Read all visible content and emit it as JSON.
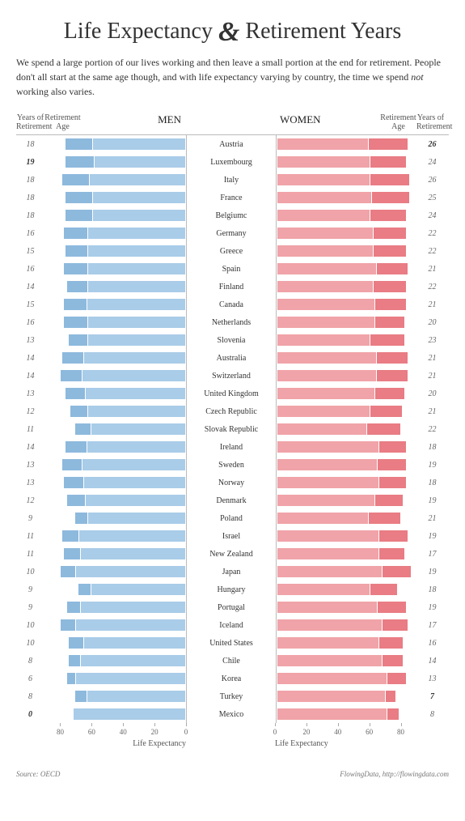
{
  "title_pre": "Life Expectancy ",
  "title_post": " Retirement Years",
  "intro_a": "We spend a large portion of our lives working and then leave a small portion at the end for retirement. People don't all start at the same age though, and with life expectancy varying by country, the time we spend ",
  "intro_em": "not",
  "intro_b": " working also varies.",
  "labels": {
    "yor": "Years of\nRetirement",
    "ret": "Retirement\nAge",
    "men": "MEN",
    "women": "WOMEN",
    "life": "Life Expectancy"
  },
  "axis": {
    "min": 0,
    "max": 90,
    "ticks": [
      0,
      20,
      40,
      60,
      80
    ]
  },
  "colors": {
    "men_life": "#a9cce8",
    "men_ret": "#8db9dd",
    "women_life": "#f0a3a8",
    "women_ret": "#e97c84",
    "baseline": "#bbbbbb",
    "text": "#333333",
    "muted": "#666666"
  },
  "source": "Source: OECD",
  "credit": "FlowingData, http://flowingdata.com",
  "countries": [
    {
      "name": "Austria",
      "m_ret": 59,
      "m_life": 77,
      "m_yor": 18,
      "w_ret": 58,
      "w_life": 84,
      "w_yor": 26,
      "w_bold": true
    },
    {
      "name": "Luxembourg",
      "m_ret": 58,
      "m_life": 77,
      "m_yor": 19,
      "m_bold": true,
      "w_ret": 59,
      "w_life": 83,
      "w_yor": 24
    },
    {
      "name": "Italy",
      "m_ret": 61,
      "m_life": 79,
      "m_yor": 18,
      "w_ret": 59,
      "w_life": 85,
      "w_yor": 26
    },
    {
      "name": "France",
      "m_ret": 59,
      "m_life": 77,
      "m_yor": 18,
      "w_ret": 60,
      "w_life": 85,
      "w_yor": 25
    },
    {
      "name": "Belgiumc",
      "m_ret": 59,
      "m_life": 77,
      "m_yor": 18,
      "w_ret": 59,
      "w_life": 83,
      "w_yor": 24
    },
    {
      "name": "Germany",
      "m_ret": 62,
      "m_life": 78,
      "m_yor": 16,
      "w_ret": 61,
      "w_life": 83,
      "w_yor": 22
    },
    {
      "name": "Greece",
      "m_ret": 62,
      "m_life": 77,
      "m_yor": 15,
      "w_ret": 61,
      "w_life": 83,
      "w_yor": 22
    },
    {
      "name": "Spain",
      "m_ret": 62,
      "m_life": 78,
      "m_yor": 16,
      "w_ret": 63,
      "w_life": 84,
      "w_yor": 21
    },
    {
      "name": "Finland",
      "m_ret": 62,
      "m_life": 76,
      "m_yor": 14,
      "w_ret": 61,
      "w_life": 83,
      "w_yor": 22
    },
    {
      "name": "Canada",
      "m_ret": 63,
      "m_life": 78,
      "m_yor": 15,
      "w_ret": 62,
      "w_life": 83,
      "w_yor": 21
    },
    {
      "name": "Netherlands",
      "m_ret": 62,
      "m_life": 78,
      "m_yor": 16,
      "w_ret": 62,
      "w_life": 82,
      "w_yor": 20
    },
    {
      "name": "Slovenia",
      "m_ret": 62,
      "m_life": 75,
      "m_yor": 13,
      "w_ret": 59,
      "w_life": 82,
      "w_yor": 23
    },
    {
      "name": "Australia",
      "m_ret": 65,
      "m_life": 79,
      "m_yor": 14,
      "w_ret": 63,
      "w_life": 84,
      "w_yor": 21
    },
    {
      "name": "Switzerland",
      "m_ret": 66,
      "m_life": 80,
      "m_yor": 14,
      "w_ret": 63,
      "w_life": 84,
      "w_yor": 21
    },
    {
      "name": "United Kingdom",
      "m_ret": 64,
      "m_life": 77,
      "m_yor": 13,
      "w_ret": 62,
      "w_life": 82,
      "w_yor": 20
    },
    {
      "name": "Czech Republic",
      "m_ret": 62,
      "m_life": 74,
      "m_yor": 12,
      "w_ret": 59,
      "w_life": 80,
      "w_yor": 21
    },
    {
      "name": "Slovak Republic",
      "m_ret": 60,
      "m_life": 71,
      "m_yor": 11,
      "w_ret": 57,
      "w_life": 79,
      "w_yor": 22
    },
    {
      "name": "Ireland",
      "m_ret": 63,
      "m_life": 77,
      "m_yor": 14,
      "w_ret": 65,
      "w_life": 83,
      "w_yor": 18
    },
    {
      "name": "Sweden",
      "m_ret": 66,
      "m_life": 79,
      "m_yor": 13,
      "w_ret": 64,
      "w_life": 83,
      "w_yor": 19
    },
    {
      "name": "Norway",
      "m_ret": 65,
      "m_life": 78,
      "m_yor": 13,
      "w_ret": 65,
      "w_life": 83,
      "w_yor": 18
    },
    {
      "name": "Denmark",
      "m_ret": 64,
      "m_life": 76,
      "m_yor": 12,
      "w_ret": 62,
      "w_life": 81,
      "w_yor": 19
    },
    {
      "name": "Poland",
      "m_ret": 62,
      "m_life": 71,
      "m_yor": 9,
      "w_ret": 58,
      "w_life": 79,
      "w_yor": 21
    },
    {
      "name": "Israel",
      "m_ret": 68,
      "m_life": 79,
      "m_yor": 11,
      "w_ret": 65,
      "w_life": 84,
      "w_yor": 19
    },
    {
      "name": "New Zealand",
      "m_ret": 67,
      "m_life": 78,
      "m_yor": 11,
      "w_ret": 65,
      "w_life": 82,
      "w_yor": 17
    },
    {
      "name": "Japan",
      "m_ret": 70,
      "m_life": 80,
      "m_yor": 10,
      "w_ret": 67,
      "w_life": 86,
      "w_yor": 19
    },
    {
      "name": "Hungary",
      "m_ret": 60,
      "m_life": 69,
      "m_yor": 9,
      "w_ret": 59,
      "w_life": 77,
      "w_yor": 18
    },
    {
      "name": "Portugal",
      "m_ret": 67,
      "m_life": 76,
      "m_yor": 9,
      "w_ret": 64,
      "w_life": 83,
      "w_yor": 19
    },
    {
      "name": "Iceland",
      "m_ret": 70,
      "m_life": 80,
      "m_yor": 10,
      "w_ret": 67,
      "w_life": 84,
      "w_yor": 17
    },
    {
      "name": "United States",
      "m_ret": 65,
      "m_life": 75,
      "m_yor": 10,
      "w_ret": 65,
      "w_life": 81,
      "w_yor": 16
    },
    {
      "name": "Chile",
      "m_ret": 67,
      "m_life": 75,
      "m_yor": 8,
      "w_ret": 67,
      "w_life": 81,
      "w_yor": 14
    },
    {
      "name": "Korea",
      "m_ret": 70,
      "m_life": 76,
      "m_yor": 6,
      "w_ret": 70,
      "w_life": 83,
      "w_yor": 13
    },
    {
      "name": "Turkey",
      "m_ret": 63,
      "m_life": 71,
      "m_yor": 8,
      "w_ret": 69,
      "w_life": 76,
      "w_yor": 7,
      "w_bold": true
    },
    {
      "name": "Mexico",
      "m_ret": 72,
      "m_life": 72,
      "m_yor": 0,
      "m_bold": true,
      "w_ret": 70,
      "w_life": 78,
      "w_yor": 8
    }
  ]
}
